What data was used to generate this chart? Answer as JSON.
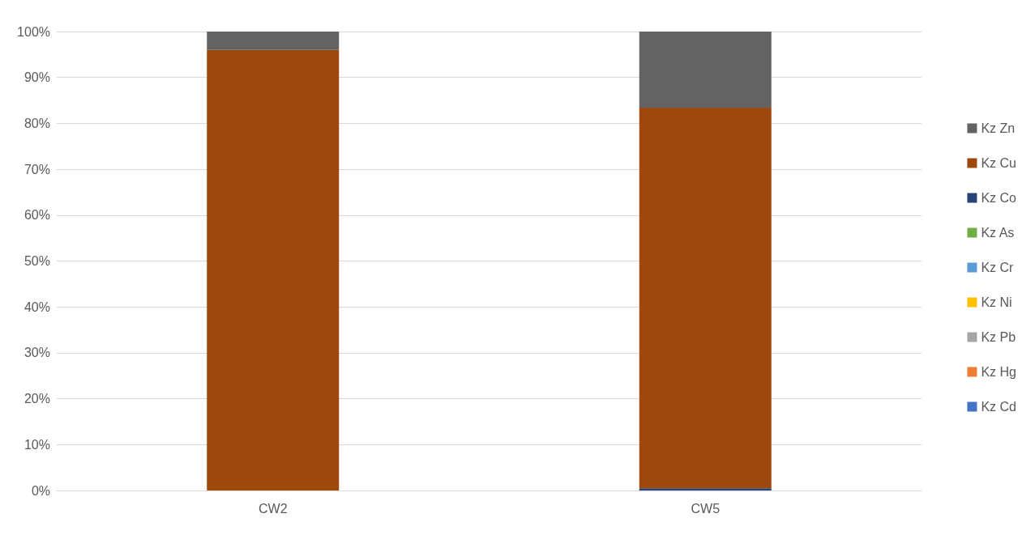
{
  "chart_data": {
    "type": "bar",
    "stacked": true,
    "categories": [
      "CW2",
      "CW5"
    ],
    "series": [
      {
        "name": "Kz Cd",
        "color": "#4472c4",
        "values": [
          0,
          0
        ]
      },
      {
        "name": "Kz Hg",
        "color": "#ed7d31",
        "values": [
          0,
          0
        ]
      },
      {
        "name": "Kz Pb",
        "color": "#a5a5a5",
        "values": [
          0,
          0
        ]
      },
      {
        "name": "Kz Ni",
        "color": "#ffc000",
        "values": [
          0,
          0
        ]
      },
      {
        "name": "Kz Cr",
        "color": "#5b9bd5",
        "values": [
          0,
          0
        ]
      },
      {
        "name": "Kz As",
        "color": "#70ad47",
        "values": [
          0,
          0
        ]
      },
      {
        "name": "Kz Co",
        "color": "#264478",
        "values": [
          0,
          0.5
        ]
      },
      {
        "name": "Kz Cu",
        "color": "#9e480e",
        "values": [
          96,
          82.9
        ]
      },
      {
        "name": "Kz Zn",
        "color": "#636363",
        "values": [
          4,
          16.6
        ]
      }
    ],
    "ylim": [
      0,
      100
    ],
    "yticks": [
      {
        "value": 0,
        "label": "0%"
      },
      {
        "value": 10,
        "label": "10%"
      },
      {
        "value": 20,
        "label": "20%"
      },
      {
        "value": 30,
        "label": "30%"
      },
      {
        "value": 40,
        "label": "40%"
      },
      {
        "value": 50,
        "label": "50%"
      },
      {
        "value": 60,
        "label": "60%"
      },
      {
        "value": 70,
        "label": "70%"
      },
      {
        "value": 80,
        "label": "80%"
      },
      {
        "value": 90,
        "label": "90%"
      },
      {
        "value": 100,
        "label": "100%"
      }
    ],
    "grid": "y",
    "legend": "right"
  }
}
